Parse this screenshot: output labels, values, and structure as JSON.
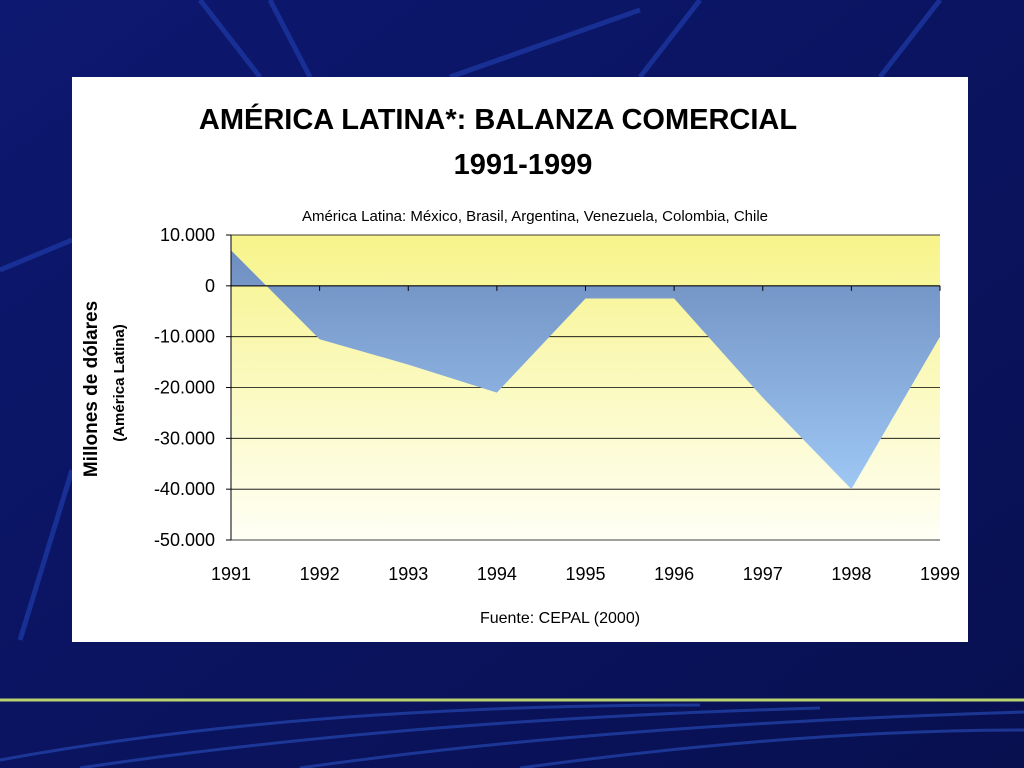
{
  "slide": {
    "colors": {
      "background": "#0b1463",
      "streak": "#1e3aa8",
      "footer_line": "#b9d46e"
    }
  },
  "chart_data": {
    "type": "area",
    "title": "AMÉRICA LATINA*: BALANZA COMERCIAL",
    "title_line2": "1991-1999",
    "subtitle": "América Latina: México, Brasil, Argentina, Venezuela, Colombia, Chile",
    "ylabel": "Millones de dólares",
    "ylabel_sub": "(América Latina)",
    "xlabel": "",
    "source": "Fuente: CEPAL (2000)",
    "x": [
      "1991",
      "1992",
      "1993",
      "1994",
      "1995",
      "1996",
      "1997",
      "1998",
      "1999"
    ],
    "values": [
      7000,
      -10500,
      -15500,
      -21000,
      -2500,
      -2500,
      -22000,
      -40000,
      -10000
    ],
    "ylim": [
      -50000,
      10000
    ],
    "yticks": [
      10000,
      0,
      -10000,
      -20000,
      -30000,
      -40000,
      -50000
    ],
    "ytick_labels": [
      "10.000",
      "0",
      "-10.000",
      "-20.000",
      "-30.000",
      "-40.000",
      "-50.000"
    ],
    "grid": true,
    "colors": {
      "area_top": "#6e8ec0",
      "area_bottom": "#9ec7f4",
      "plot_top": "#f7f48a",
      "plot_bottom": "#fffff6",
      "gridline": "#000000"
    }
  }
}
